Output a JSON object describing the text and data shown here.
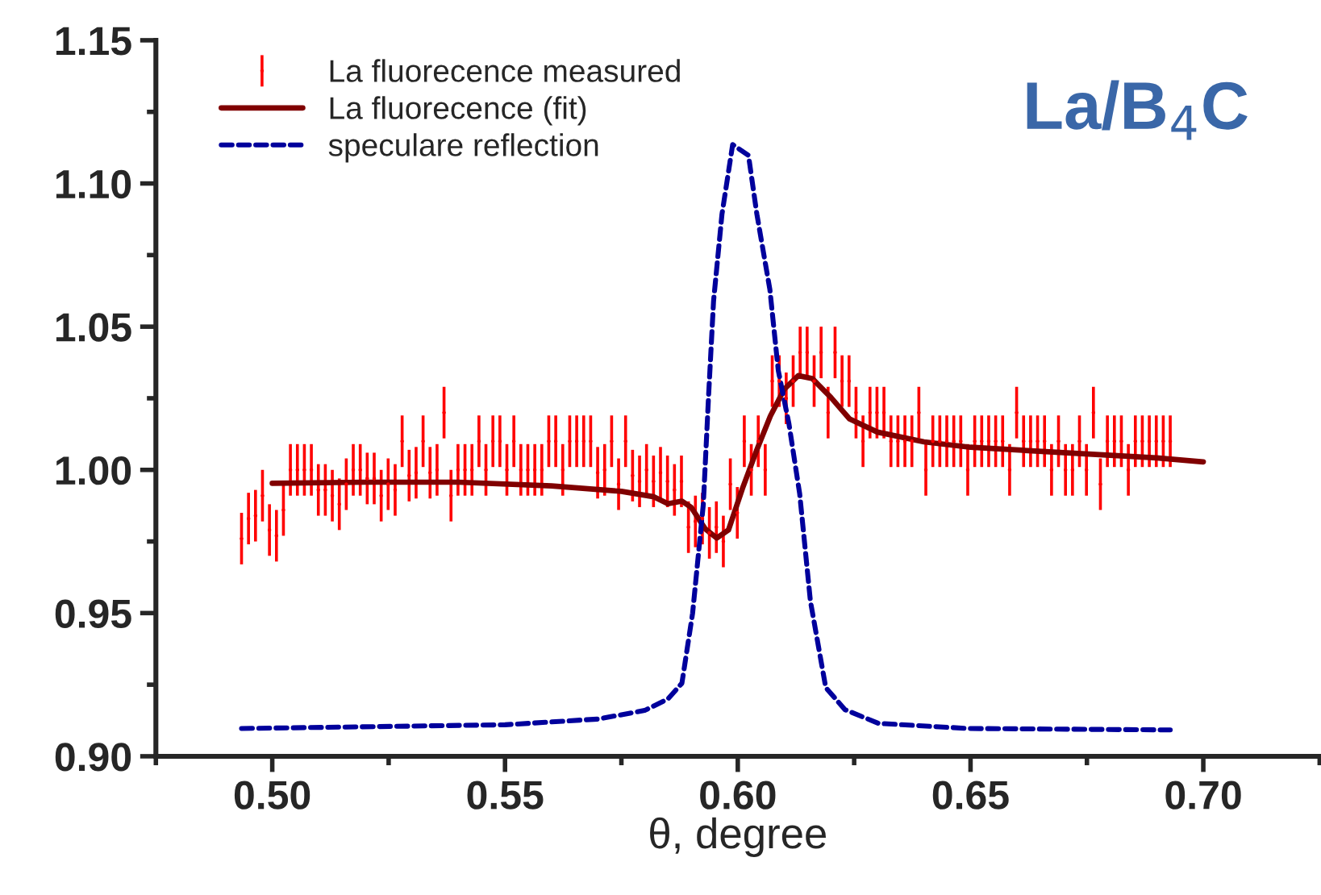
{
  "chart_data": {
    "type": "line",
    "xlabel": "θ, degree",
    "xlim": [
      0.475,
      0.725
    ],
    "xticks": [
      {
        "value": 0.5,
        "label": "0.50"
      },
      0.55,
      {
        "value": 0.6,
        "label": "0.60"
      },
      0.65,
      {
        "value": 0.7,
        "label": "0.70"
      }
    ],
    "ylim": [
      0.9,
      1.15
    ],
    "yticks": [
      {
        "value": 0.9,
        "label": "0.90"
      },
      0.95,
      {
        "value": 1.0,
        "label": "1.00"
      },
      1.05,
      {
        "value": 1.1,
        "label": "1.10"
      },
      1.15
    ],
    "grid": false,
    "legend": "top left",
    "annotations": [
      "La/B$_{4}$C"
    ],
    "series": [
      {
        "name": "La fluorecence measured",
        "type": "scatter",
        "color": "#ff0000",
        "x": [
          0.4934,
          0.4949,
          0.4964,
          0.4979,
          0.4994,
          0.5009,
          0.5024,
          0.5039,
          0.5054,
          0.5069,
          0.5084,
          0.5099,
          0.5114,
          0.5129,
          0.5144,
          0.5159,
          0.5174,
          0.5189,
          0.5204,
          0.5219,
          0.5234,
          0.5249,
          0.5264,
          0.5279,
          0.5294,
          0.5309,
          0.5324,
          0.5339,
          0.5354,
          0.5369,
          0.5384,
          0.5399,
          0.5414,
          0.5429,
          0.5444,
          0.5459,
          0.5474,
          0.5489,
          0.5504,
          0.5519,
          0.5534,
          0.5549,
          0.5564,
          0.5579,
          0.5594,
          0.5609,
          0.5624,
          0.5639,
          0.5654,
          0.5669,
          0.5684,
          0.5699,
          0.5714,
          0.5729,
          0.5744,
          0.5759,
          0.5774,
          0.5789,
          0.5804,
          0.5819,
          0.5834,
          0.5849,
          0.5864,
          0.5879,
          0.5894,
          0.5909,
          0.5924,
          0.5939,
          0.5954,
          0.5969,
          0.5984,
          0.5999,
          0.6014,
          0.6029,
          0.6044,
          0.6059,
          0.6074,
          0.6089,
          0.6104,
          0.6119,
          0.6134,
          0.6149,
          0.6164,
          0.6179,
          0.6194,
          0.6209,
          0.6224,
          0.6239,
          0.6254,
          0.6269,
          0.6284,
          0.6299,
          0.6314,
          0.6329,
          0.6344,
          0.6359,
          0.6374,
          0.6389,
          0.6404,
          0.6419,
          0.6434,
          0.6449,
          0.6464,
          0.6479,
          0.6494,
          0.6509,
          0.6524,
          0.6539,
          0.6554,
          0.6569,
          0.6584,
          0.6599,
          0.6614,
          0.6629,
          0.6644,
          0.6659,
          0.6674,
          0.6689,
          0.6704,
          0.6719,
          0.6734,
          0.6749,
          0.6764,
          0.6779,
          0.6794,
          0.6809,
          0.6824,
          0.6839,
          0.6854,
          0.6869,
          0.6884,
          0.6899,
          0.6914,
          0.6929
        ],
        "values": [
          0.976,
          0.983,
          0.984,
          0.991,
          0.979,
          0.977,
          0.986,
          1.0,
          1.0,
          1.0,
          1.0,
          0.993,
          0.993,
          0.991,
          0.988,
          0.995,
          1.0,
          1.0,
          0.997,
          0.997,
          0.991,
          0.995,
          0.993,
          1.01,
          0.998,
          0.999,
          1.01,
          0.999,
          1.0,
          1.02,
          0.991,
          1.0,
          1.0,
          1.0,
          1.01,
          1.0,
          1.01,
          1.01,
          1.0,
          1.01,
          1.0,
          1.0,
          1.0,
          1.0,
          1.01,
          1.01,
          1.0,
          1.01,
          1.01,
          1.01,
          1.01,
          0.999,
          1.0,
          1.01,
          0.995,
          1.01,
          0.998,
          0.996,
          1.0,
          0.996,
          0.999,
          0.996,
          0.993,
          0.996,
          0.98,
          0.982,
          0.983,
          0.978,
          0.98,
          0.975,
          0.995,
          0.985,
          1.01,
          1.0,
          1.01,
          1.0,
          1.031,
          1.031,
          1.025,
          1.031,
          1.041,
          1.041,
          1.031,
          1.041,
          1.02,
          1.041,
          1.031,
          1.031,
          1.02,
          1.01,
          1.02,
          1.02,
          1.02,
          1.01,
          1.01,
          1.01,
          1.01,
          1.02,
          1.0,
          1.01,
          1.01,
          1.01,
          1.01,
          1.01,
          1.0,
          1.01,
          1.01,
          1.01,
          1.01,
          1.01,
          1.0,
          1.02,
          1.01,
          1.01,
          1.01,
          1.01,
          1.0,
          1.01,
          1.0,
          1.0,
          1.01,
          1.0,
          1.02,
          0.995,
          1.01,
          1.01,
          1.01,
          1.0,
          1.01,
          1.01,
          1.01,
          1.01,
          1.01,
          1.01
        ],
        "errors": [
          0.009,
          0.009,
          0.009,
          0.009,
          0.009,
          0.009,
          0.009,
          0.009,
          0.009,
          0.009,
          0.009,
          0.009,
          0.009,
          0.009,
          0.009,
          0.009,
          0.009,
          0.009,
          0.009,
          0.009,
          0.009,
          0.009,
          0.009,
          0.009,
          0.009,
          0.009,
          0.009,
          0.009,
          0.009,
          0.009,
          0.009,
          0.009,
          0.009,
          0.009,
          0.009,
          0.009,
          0.009,
          0.009,
          0.009,
          0.009,
          0.009,
          0.009,
          0.009,
          0.009,
          0.009,
          0.009,
          0.009,
          0.009,
          0.009,
          0.009,
          0.009,
          0.009,
          0.009,
          0.009,
          0.009,
          0.009,
          0.009,
          0.009,
          0.009,
          0.009,
          0.009,
          0.009,
          0.009,
          0.009,
          0.009,
          0.009,
          0.009,
          0.009,
          0.009,
          0.009,
          0.009,
          0.009,
          0.009,
          0.009,
          0.009,
          0.009,
          0.009,
          0.009,
          0.009,
          0.009,
          0.009,
          0.009,
          0.009,
          0.009,
          0.009,
          0.009,
          0.009,
          0.009,
          0.009,
          0.009,
          0.009,
          0.009,
          0.009,
          0.009,
          0.009,
          0.009,
          0.009,
          0.009,
          0.009,
          0.009,
          0.009,
          0.009,
          0.009,
          0.009,
          0.009,
          0.009,
          0.009,
          0.009,
          0.009,
          0.009,
          0.009,
          0.009,
          0.009,
          0.009,
          0.009,
          0.009,
          0.009,
          0.009,
          0.009,
          0.009,
          0.009,
          0.009,
          0.009,
          0.009,
          0.009,
          0.009,
          0.009,
          0.009,
          0.009,
          0.009,
          0.009,
          0.009,
          0.009,
          0.009
        ]
      },
      {
        "name": "La fluorecence (fit)",
        "color": "#800000",
        "line_style": "solid",
        "x": [
          0.5,
          0.52,
          0.54,
          0.56,
          0.575,
          0.582,
          0.585,
          0.588,
          0.59,
          0.593,
          0.5955,
          0.598,
          0.601,
          0.604,
          0.607,
          0.61,
          0.613,
          0.616,
          0.62,
          0.624,
          0.63,
          0.64,
          0.65,
          0.67,
          0.69,
          0.7
        ],
        "values": [
          0.9953,
          0.9957,
          0.9957,
          0.9944,
          0.9925,
          0.9906,
          0.9882,
          0.9891,
          0.9869,
          0.9794,
          0.9762,
          0.979,
          0.9935,
          1.0066,
          1.0188,
          1.0282,
          1.0329,
          1.0319,
          1.0253,
          1.0178,
          1.0132,
          1.0098,
          1.0079,
          1.006,
          1.0042,
          1.0028
        ]
      },
      {
        "name": "speculare reflection",
        "color": "#00009c",
        "line_style": "dashed",
        "x": [
          0.4934,
          0.55,
          0.57,
          0.58,
          0.585,
          0.588,
          0.5903,
          0.5926,
          0.5937,
          0.5948,
          0.5966,
          0.5989,
          0.6023,
          0.6041,
          0.6069,
          0.6087,
          0.611,
          0.6133,
          0.6156,
          0.6189,
          0.623,
          0.6302,
          0.6495,
          0.6929
        ],
        "values": [
          0.9097,
          0.911,
          0.913,
          0.916,
          0.92,
          0.9255,
          0.95,
          0.988,
          1.025,
          1.059,
          1.0892,
          1.1136,
          1.1098,
          1.0893,
          1.0629,
          1.0347,
          1.016,
          0.9916,
          0.9542,
          0.924,
          0.9163,
          0.9115,
          0.9097,
          0.9092
        ]
      }
    ]
  }
}
